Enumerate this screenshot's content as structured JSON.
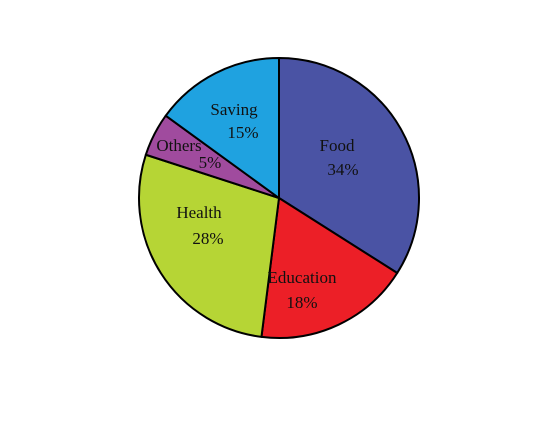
{
  "chart_data": {
    "type": "pie",
    "start_angle_deg": 0,
    "direction": "clockwise",
    "slices": [
      {
        "label": "Food",
        "value_label": "34%",
        "value": 34,
        "color": "#4a53a4"
      },
      {
        "label": "Education",
        "value_label": "18%",
        "value": 18,
        "color": "#ec1f27"
      },
      {
        "label": "Health",
        "value_label": "28%",
        "value": 28,
        "color": "#b6d535"
      },
      {
        "label": "Others",
        "value_label": "5%",
        "value": 5,
        "color": "#a04b9e"
      },
      {
        "label": "Saving",
        "value_label": "15%",
        "value": 15,
        "color": "#1fa2e0"
      }
    ]
  }
}
